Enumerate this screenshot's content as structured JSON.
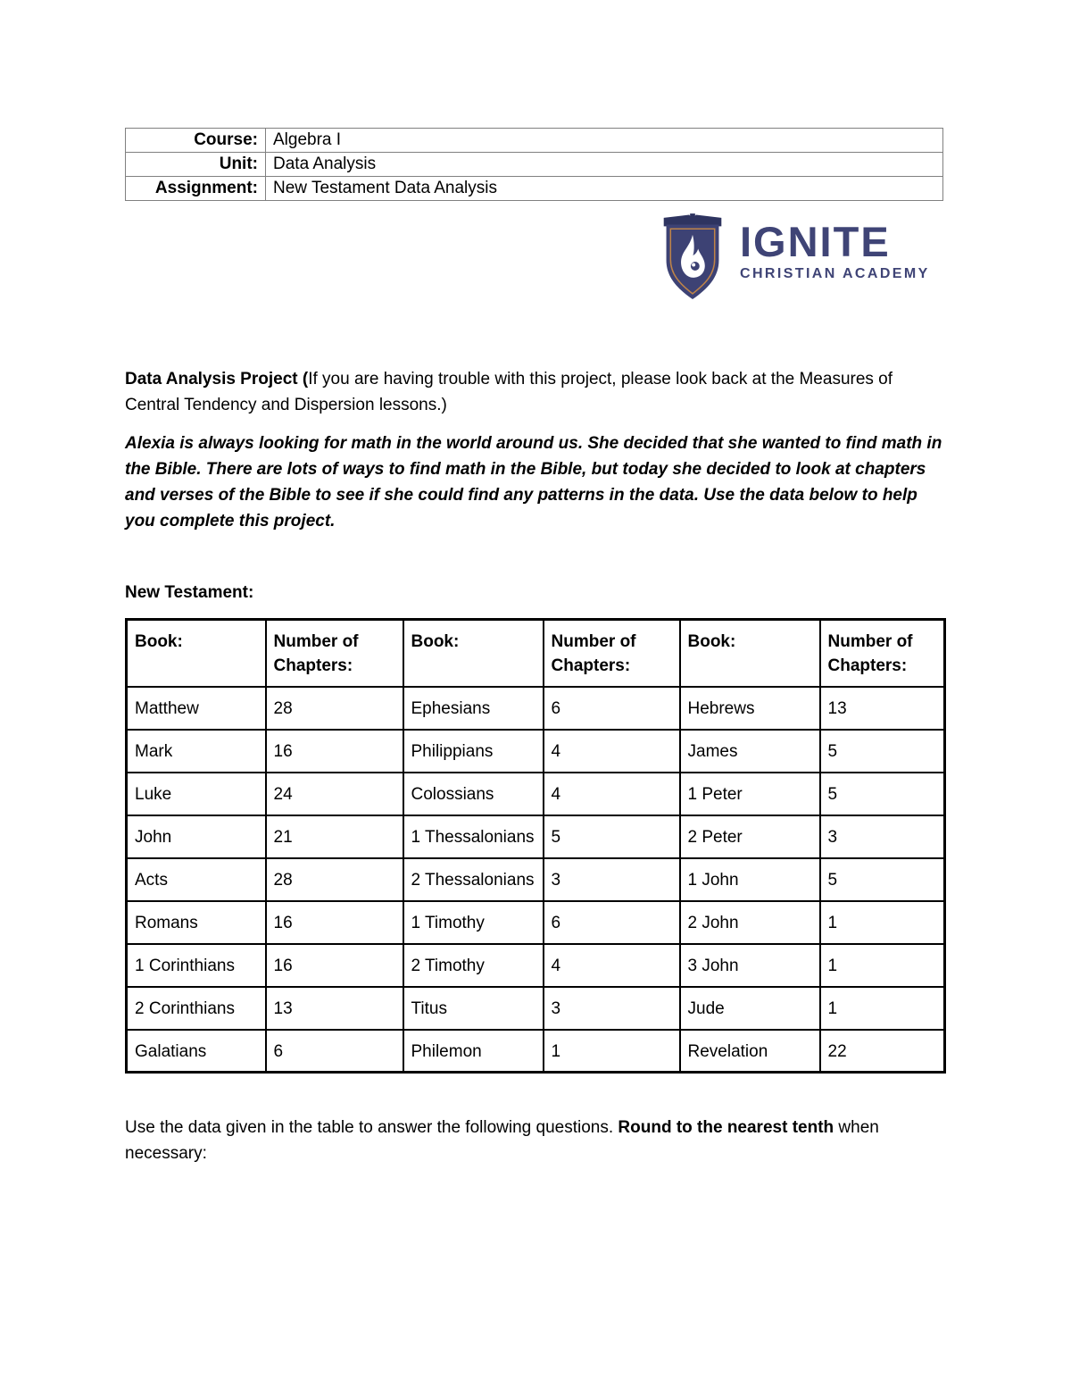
{
  "meta_table": {
    "rows": [
      {
        "label": "Course:",
        "value": "Algebra I"
      },
      {
        "label": "Unit:",
        "value": "Data Analysis"
      },
      {
        "label": "Assignment:",
        "value": "New Testament Data Analysis"
      }
    ]
  },
  "logo": {
    "name": "IGNITE",
    "subtitle": "CHRISTIAN ACADEMY",
    "navy": "#3f4476",
    "navy_dark": "#2e3460",
    "gold": "#bf8448"
  },
  "intro": {
    "bold_lead": "Data Analysis Project (",
    "rest": "If you are having trouble with this project, please look back at the Measures of Central Tendency and Dispersion lessons.)"
  },
  "story": "Alexia is always looking for math in the world around us. She decided that she wanted to find math in the Bible. There are lots of ways to find math in the Bible, but today she decided to look at chapters and verses of the Bible to see if she could find any patterns in the data. Use the data below to help you complete this project.",
  "section_heading": "New Testament:",
  "nt_table": {
    "headers": [
      "Book:",
      "Number of Chapters:",
      "Book:",
      "Number of Chapters:",
      "Book:",
      "Number of Chapters:"
    ],
    "rows": [
      [
        "Matthew",
        "28",
        "Ephesians",
        "6",
        "Hebrews",
        "13"
      ],
      [
        "Mark",
        "16",
        "Philippians",
        "4",
        "James",
        "5"
      ],
      [
        "Luke",
        "24",
        "Colossians",
        "4",
        "1 Peter",
        "5"
      ],
      [
        "John",
        "21",
        "1 Thessalonians",
        "5",
        "2 Peter",
        "3"
      ],
      [
        "Acts",
        "28",
        "2 Thessalonians",
        "3",
        "1 John",
        "5"
      ],
      [
        "Romans",
        "16",
        "1 Timothy",
        "6",
        "2 John",
        "1"
      ],
      [
        "1 Corinthians",
        "16",
        "2 Timothy",
        "4",
        "3 John",
        "1"
      ],
      [
        "2 Corinthians",
        "13",
        "Titus",
        "3",
        "Jude",
        "1"
      ],
      [
        "Galatians",
        "6",
        "Philemon",
        "1",
        "Revelation",
        "22"
      ]
    ]
  },
  "closing": {
    "part1": "Use the data given in the table to answer the following questions. ",
    "bold": "Round to the nearest tenth",
    "part2": " when necessary:"
  }
}
